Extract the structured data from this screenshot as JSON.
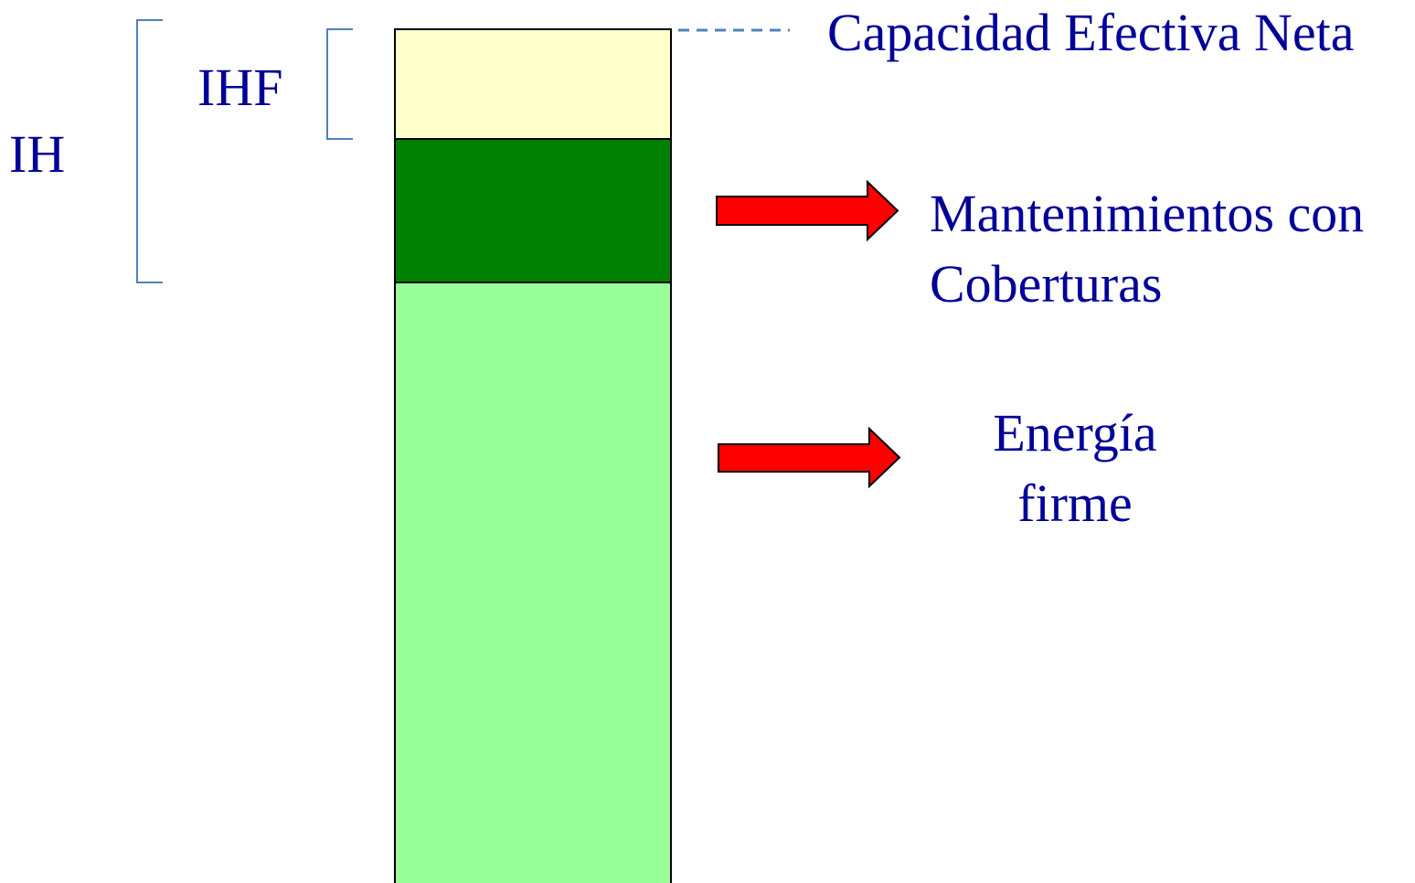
{
  "labels": {
    "capacidad": "Capacidad Efectiva Neta",
    "ihf": "IHF",
    "ih": "IH",
    "mantenimientos": [
      "Mantenimientos con",
      "Coberturas"
    ],
    "energia": [
      "Energía",
      "firme"
    ]
  }
}
